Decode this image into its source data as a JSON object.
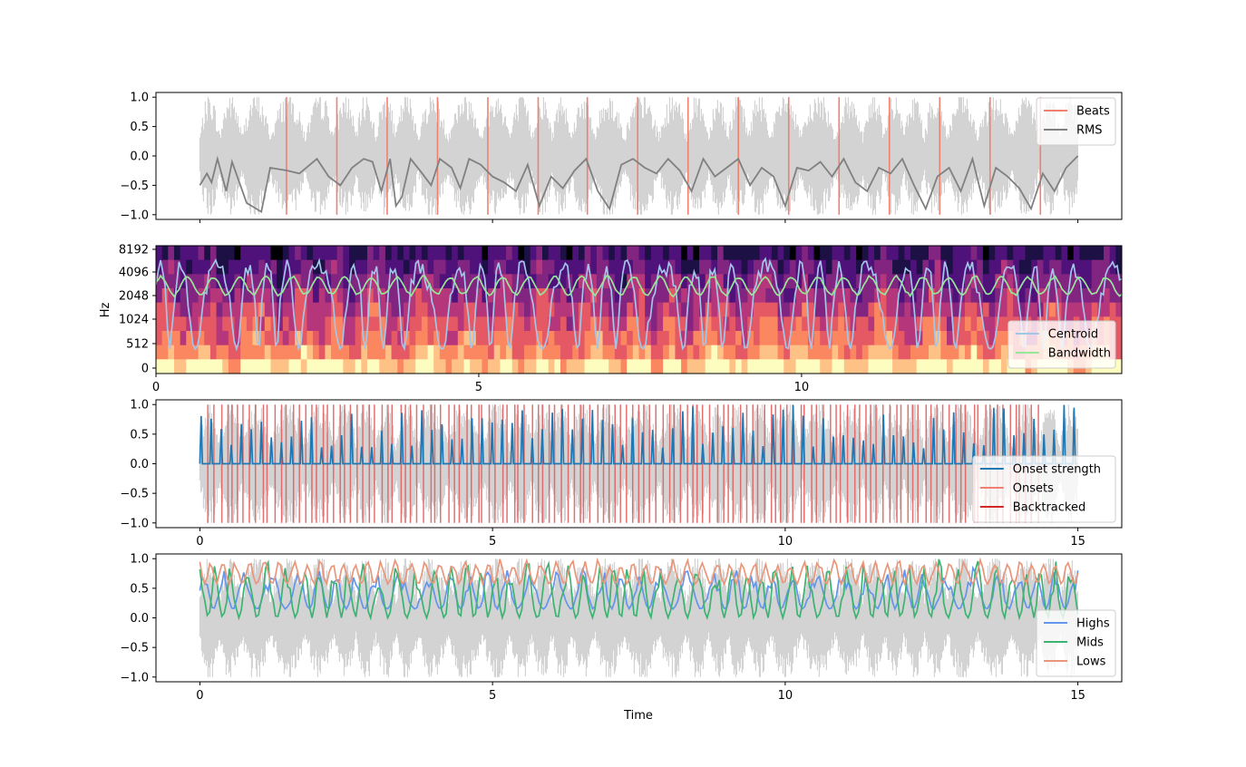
{
  "chart_data": [
    {
      "type": "line",
      "xlim": [
        -0.75,
        15.75
      ],
      "ylim": [
        -1.08,
        1.08
      ],
      "xticks": [
        0,
        5,
        10,
        15
      ],
      "show_xticklabels": false,
      "yticks": [
        -1.0,
        -0.5,
        0.0,
        0.5,
        1.0
      ],
      "yticklabels": [
        "−1.0",
        "−0.5",
        "0.0",
        "0.5",
        "1.0"
      ],
      "legend": {
        "loc": "upper right",
        "entries": [
          {
            "label": "Beats",
            "color": "#f08070",
            "kind": "line"
          },
          {
            "label": "RMS",
            "color": "#808080",
            "kind": "line"
          }
        ]
      },
      "waveform": {
        "color": "#d3d3d3",
        "x_range": [
          0,
          15
        ]
      },
      "beats": {
        "color": "#f08070",
        "times": [
          1.48,
          2.34,
          3.2,
          4.06,
          4.92,
          5.78,
          6.62,
          7.48,
          8.34,
          9.2,
          10.06,
          10.92,
          11.78,
          12.64,
          13.5,
          14.36
        ]
      },
      "rms": {
        "color": "#808080",
        "x": [
          0.0,
          0.12,
          0.2,
          0.3,
          0.45,
          0.55,
          0.8,
          1.05,
          1.2,
          1.5,
          1.7,
          2.0,
          2.2,
          2.4,
          2.6,
          2.8,
          2.95,
          3.1,
          3.25,
          3.35,
          3.45,
          3.6,
          3.8,
          3.95,
          4.1,
          4.3,
          4.45,
          4.6,
          4.8,
          5.0,
          5.2,
          5.4,
          5.6,
          5.8,
          6.0,
          6.2,
          6.4,
          6.6,
          6.8,
          7.0,
          7.2,
          7.4,
          7.6,
          7.8,
          8.0,
          8.2,
          8.4,
          8.6,
          8.8,
          9.0,
          9.2,
          9.4,
          9.6,
          9.8,
          10.0,
          10.2,
          10.4,
          10.6,
          10.8,
          11.0,
          11.2,
          11.4,
          11.6,
          11.8,
          12.0,
          12.2,
          12.4,
          12.6,
          12.8,
          13.0,
          13.2,
          13.4,
          13.6,
          13.8,
          14.0,
          14.2,
          14.4,
          14.6,
          14.8,
          15.0
        ],
        "y": [
          -0.5,
          -0.3,
          -0.45,
          -0.05,
          -0.6,
          -0.1,
          -0.8,
          -0.95,
          -0.2,
          -0.25,
          -0.3,
          -0.05,
          -0.35,
          -0.5,
          -0.2,
          -0.05,
          -0.1,
          -0.6,
          -0.05,
          -0.85,
          -0.7,
          -0.05,
          -0.3,
          -0.5,
          -0.05,
          -0.2,
          -0.55,
          -0.05,
          -0.15,
          -0.35,
          -0.45,
          -0.6,
          -0.15,
          -0.85,
          -0.35,
          -0.55,
          -0.25,
          -0.05,
          -0.6,
          -0.9,
          -0.15,
          -0.05,
          -0.2,
          -0.3,
          -0.05,
          -0.25,
          -0.6,
          -0.05,
          -0.35,
          -0.2,
          -0.05,
          -0.5,
          -0.2,
          -0.35,
          -0.85,
          -0.2,
          -0.25,
          -0.1,
          -0.35,
          -0.05,
          -0.45,
          -0.6,
          -0.2,
          -0.3,
          -0.05,
          -0.5,
          -0.9,
          -0.35,
          -0.2,
          -0.6,
          -0.05,
          -0.85,
          -0.2,
          -0.35,
          -0.55,
          -0.9,
          -0.3,
          -0.6,
          -0.2,
          0.0
        ]
      }
    },
    {
      "type": "heatmap",
      "ylabel": "Hz",
      "xlim": [
        0,
        14.96
      ],
      "xticks": [
        0,
        5,
        10
      ],
      "xticklabels": [
        "0",
        "5",
        "10"
      ],
      "yticklabels": [
        "0",
        "512",
        "1024",
        "2048",
        "4096",
        "8192"
      ],
      "colormap": "magma",
      "legend": {
        "loc": "lower right",
        "entries": [
          {
            "label": "Centroid",
            "color": "#a4c4e8",
            "kind": "line"
          },
          {
            "label": "Bandwidth",
            "color": "#98e698",
            "kind": "line"
          }
        ]
      },
      "centroid": {
        "color": "#a4c4e8",
        "y_range_hz": [
          400,
          6500
        ]
      },
      "bandwidth": {
        "color": "#98e698",
        "y_range_hz": [
          1800,
          3800
        ]
      }
    },
    {
      "type": "line",
      "xlim": [
        -0.75,
        15.75
      ],
      "ylim": [
        -1.08,
        1.08
      ],
      "xticks": [
        0,
        5,
        10,
        15
      ],
      "xticklabels": [
        "0",
        "5",
        "10",
        "15"
      ],
      "yticks": [
        -1.0,
        -0.5,
        0.0,
        0.5,
        1.0
      ],
      "yticklabels": [
        "−1.0",
        "−0.5",
        "0.0",
        "0.5",
        "1.0"
      ],
      "legend": {
        "loc": "lower right",
        "entries": [
          {
            "label": "Onset strength",
            "color": "#1f77b4",
            "kind": "line"
          },
          {
            "label": "Onsets",
            "color": "#f08070",
            "kind": "line"
          },
          {
            "label": "Backtracked",
            "color": "#d62728",
            "kind": "line"
          }
        ]
      },
      "waveform": {
        "color": "#d3d3d3",
        "x_range": [
          0,
          15
        ]
      },
      "onsets": {
        "color": "#e06060",
        "count": 140,
        "x_range": [
          0.12,
          14.4
        ]
      },
      "onset_strength": {
        "color": "#1f77b4",
        "peaks": 90,
        "max": 1.0
      }
    },
    {
      "type": "line",
      "xlabel": "Time",
      "xlim": [
        -0.75,
        15.75
      ],
      "ylim": [
        -1.08,
        1.08
      ],
      "xticks": [
        0,
        5,
        10,
        15
      ],
      "xticklabels": [
        "0",
        "5",
        "10",
        "15"
      ],
      "yticks": [
        -1.0,
        -0.5,
        0.0,
        0.5,
        1.0
      ],
      "yticklabels": [
        "−1.0",
        "−0.5",
        "0.0",
        "0.5",
        "1.0"
      ],
      "legend": {
        "loc": "lower right",
        "entries": [
          {
            "label": "Highs",
            "color": "#6495ed",
            "kind": "line"
          },
          {
            "label": "Mids",
            "color": "#3cb371",
            "kind": "line"
          },
          {
            "label": "Lows",
            "color": "#e9967a",
            "kind": "line"
          }
        ]
      },
      "waveform": {
        "color": "#d3d3d3",
        "x_range": [
          0,
          15
        ]
      },
      "series": [
        {
          "name": "Highs",
          "color": "#6495ed",
          "range": [
            0.15,
            0.85
          ]
        },
        {
          "name": "Mids",
          "color": "#3cb371",
          "range": [
            0.0,
            1.0
          ]
        },
        {
          "name": "Lows",
          "color": "#e9967a",
          "range": [
            0.05,
            1.0
          ]
        }
      ]
    }
  ]
}
